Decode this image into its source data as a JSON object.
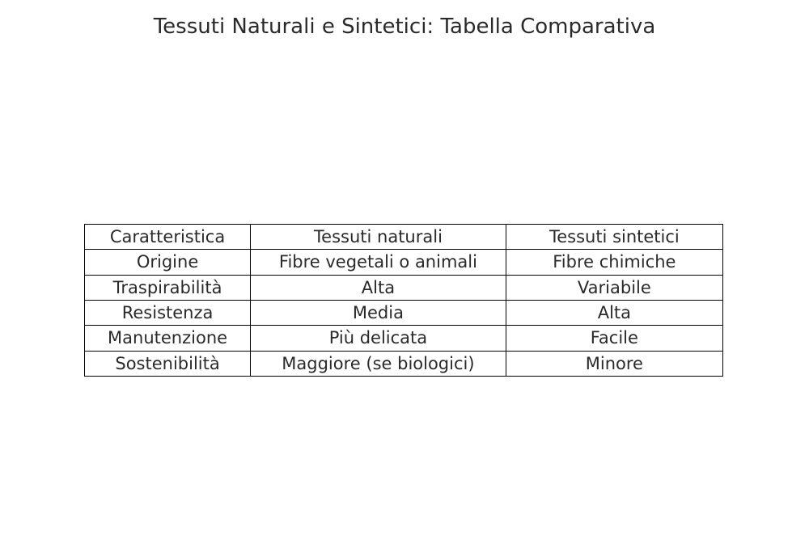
{
  "title": "Tessuti Naturali e Sintetici: Tabella Comparativa",
  "table": {
    "type": "table",
    "background_color": "#ffffff",
    "border_color": "#000000",
    "border_width": 1.5,
    "text_color": "#2a2a2a",
    "font_size": 21,
    "title_font_size": 26,
    "column_widths_pct": [
      26,
      40,
      34
    ],
    "alignment": "center",
    "columns": [
      "Caratteristica",
      "Tessuti naturali",
      "Tessuti sintetici"
    ],
    "rows": [
      [
        "Origine",
        "Fibre vegetali o animali",
        "Fibre chimiche"
      ],
      [
        "Traspirabilità",
        "Alta",
        "Variabile"
      ],
      [
        "Resistenza",
        "Media",
        "Alta"
      ],
      [
        "Manutenzione",
        "Più delicata",
        "Facile"
      ],
      [
        "Sostenibilità",
        "Maggiore (se biologici)",
        "Minore"
      ]
    ]
  }
}
